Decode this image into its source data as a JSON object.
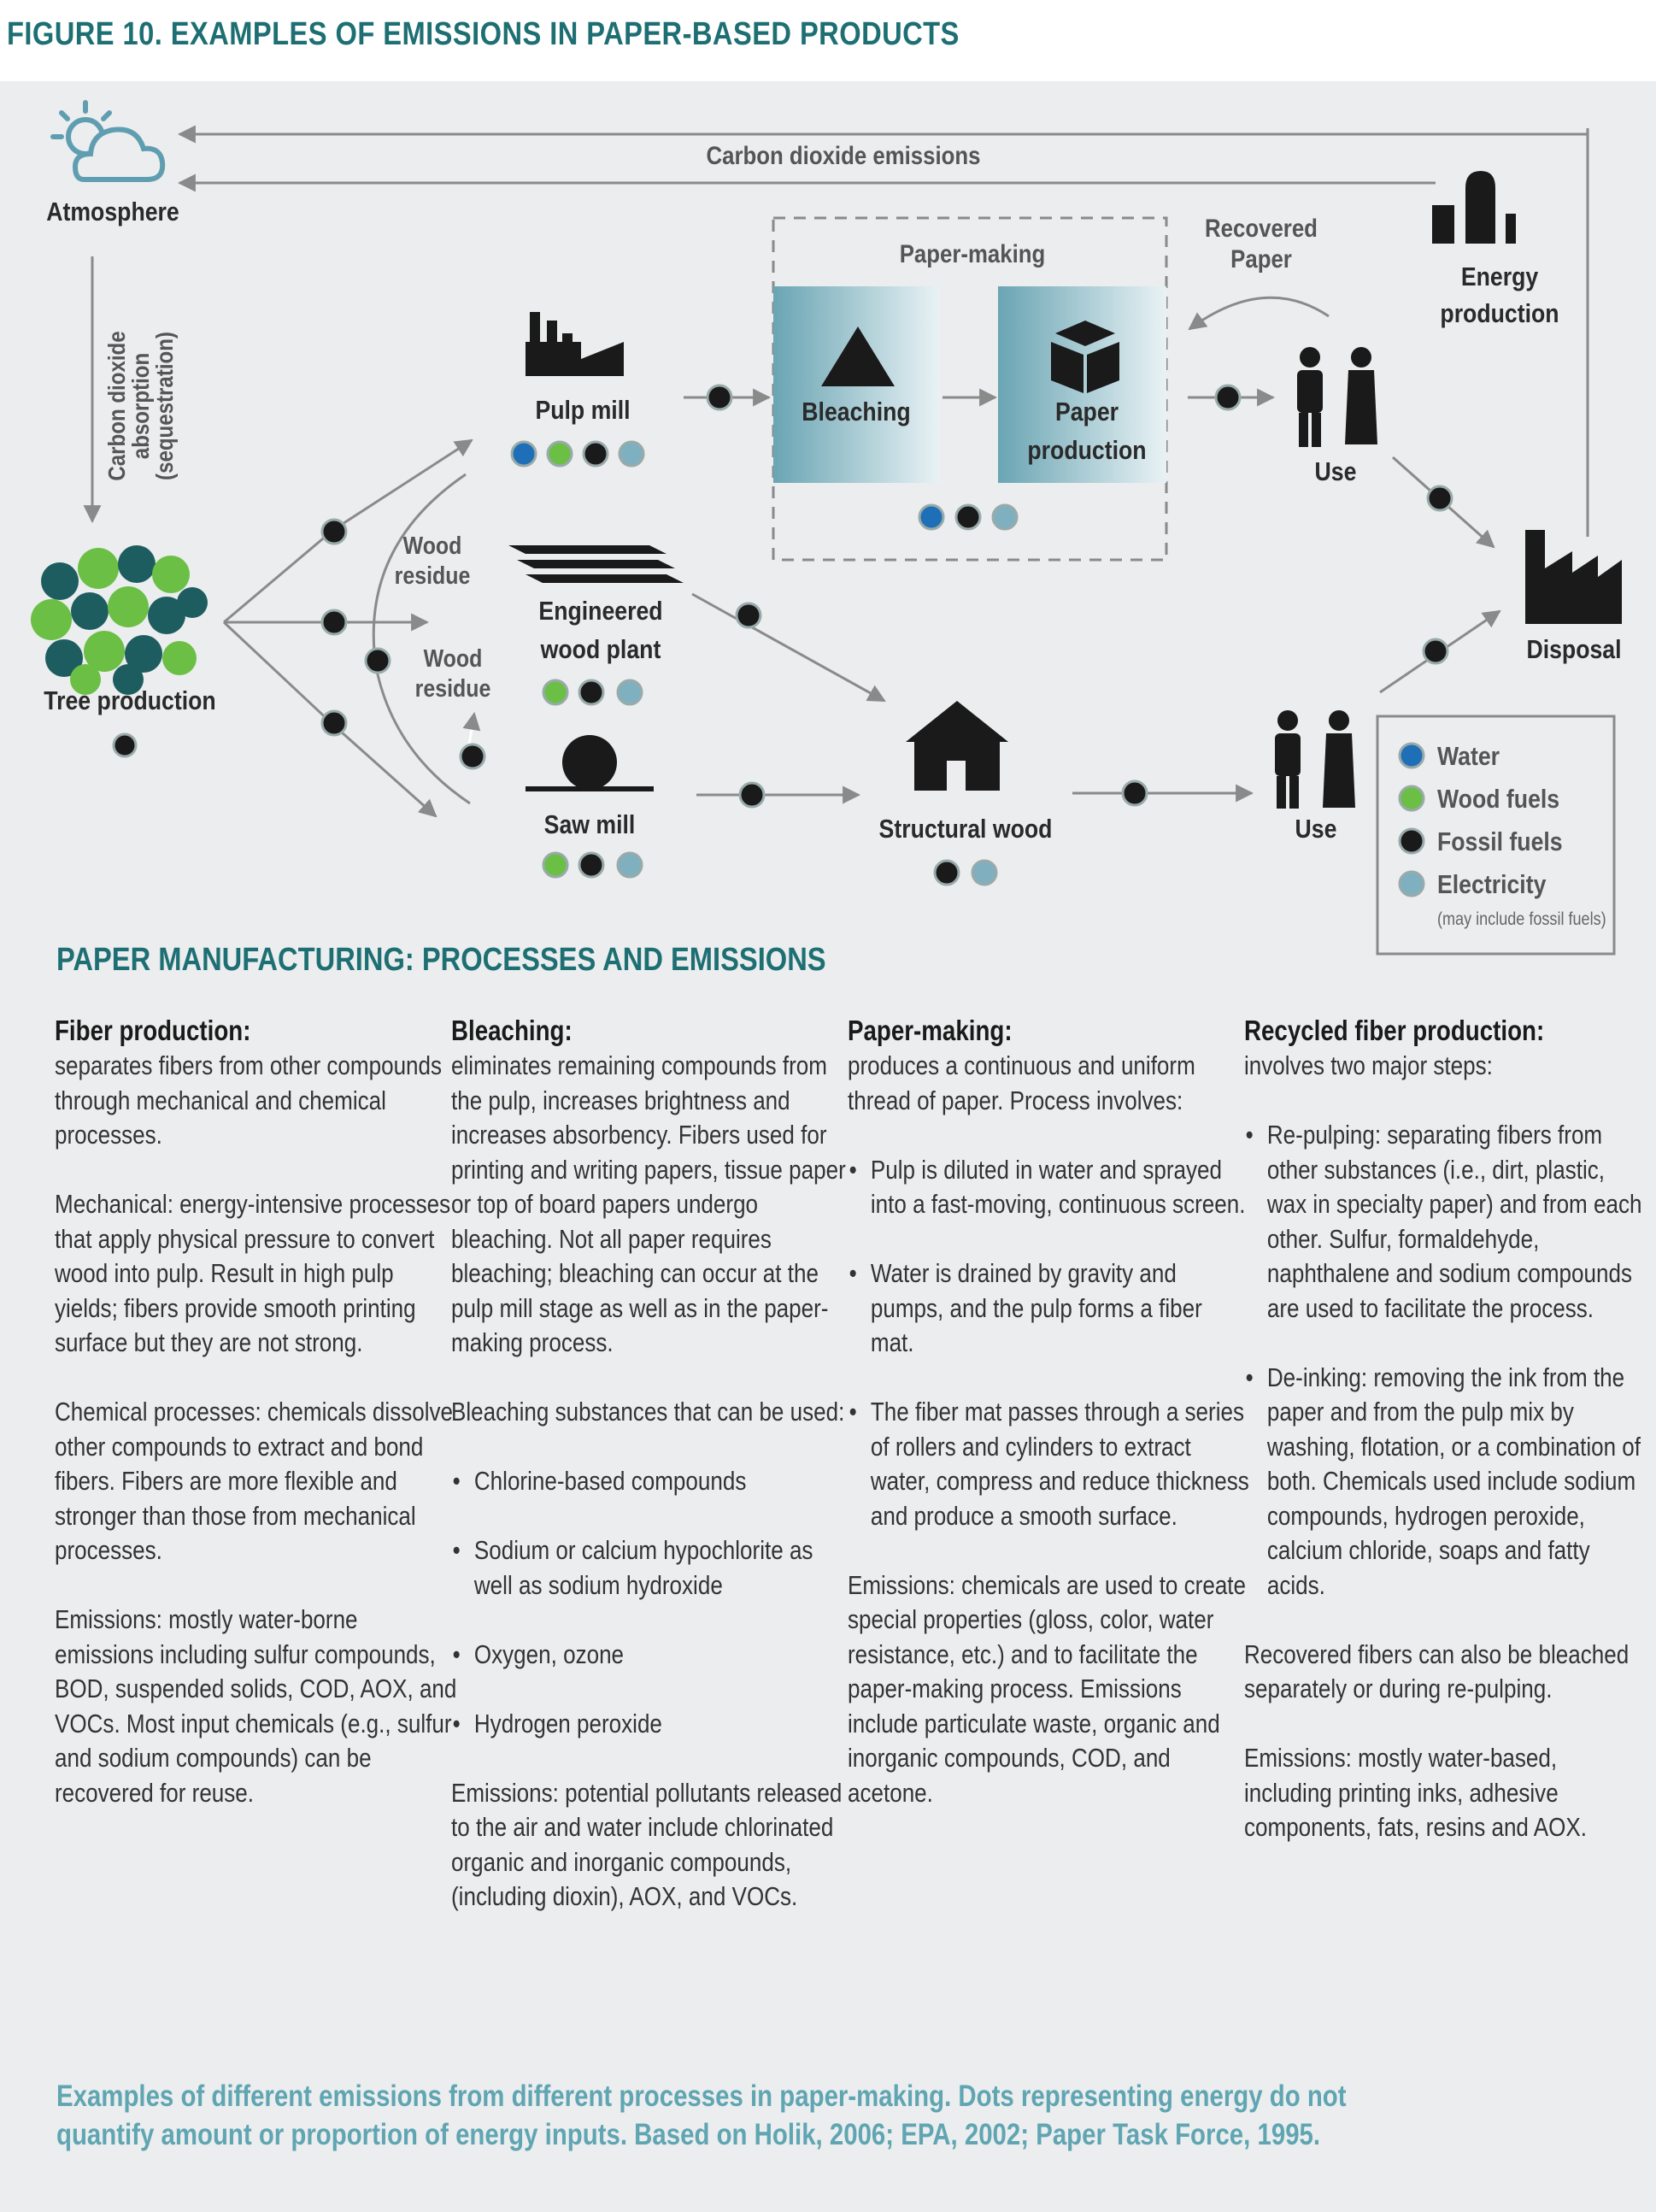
{
  "title": "FIGURE 10. EXAMPLES OF EMISSIONS IN PAPER-BASED PRODUCTS",
  "diagram": {
    "atmosphere": "Atmosphere",
    "co2_emissions": "Carbon dioxide emissions",
    "absorption_line1": "Carbon dioxide",
    "absorption_line2": "absorption",
    "absorption_line3": "(sequestration)",
    "tree_production": "Tree production",
    "wood_residue_1a": "Wood",
    "wood_residue_1b": "residue",
    "wood_residue_2a": "Wood",
    "wood_residue_2b": "residue",
    "pulp_mill": "Pulp mill",
    "engineered_1": "Engineered",
    "engineered_2": "wood plant",
    "saw_mill": "Saw mill",
    "paper_making": "Paper-making",
    "bleaching": "Bleaching",
    "paper_prod_1": "Paper",
    "paper_prod_2": "production",
    "recovered_1": "Recovered",
    "recovered_2": "Paper",
    "energy_1": "Energy",
    "energy_2": "production",
    "use_upper": "Use",
    "use_lower": "Use",
    "disposal": "Disposal",
    "structural_wood": "Structural wood"
  },
  "legend": {
    "items": [
      {
        "label": "Water",
        "color": "#1f6fb8"
      },
      {
        "label": "Wood fuels",
        "color": "#6bbf45"
      },
      {
        "label": "Fossil fuels",
        "color": "#1a1a1a"
      },
      {
        "label": "Electricity",
        "color": "#7fb0bf"
      }
    ],
    "note": "(may include fossil fuels)"
  },
  "section_title": "PAPER MANUFACTURING: PROCESSES AND EMISSIONS",
  "columns": {
    "fiber": {
      "heading": "Fiber production:",
      "p1": "separates fibers from other compounds through mechanical and chemical processes.",
      "p2": "Mechanical: energy-intensive processes that apply physical pressure to convert wood into pulp. Result in high pulp yields; fibers provide smooth printing surface but they are not strong.",
      "p3": "Chemical processes: chemicals dissolve other compounds to extract and bond fibers. Fibers are more flexible and stronger than those from mechanical processes.",
      "p4": "Emissions: mostly water-borne emissions including sulfur compounds, BOD, suspended solids, COD, AOX, and VOCs. Most input chemicals (e.g., sulfur and sodium compounds) can be recovered for reuse."
    },
    "bleaching": {
      "heading": "Bleaching:",
      "p1": "eliminates remaining compounds from the pulp, increases brightness and increases absorbency. Fibers used for printing and writing papers, tissue paper or top of board papers undergo bleaching. Not all paper requires bleaching; bleaching can occur at the pulp mill stage as well as in the paper-making process.",
      "p2": "Bleaching substances that can be used:",
      "b1": "Chlorine-based compounds",
      "b2": "Sodium or calcium hypochlorite as well as sodium hydroxide",
      "b3": "Oxygen, ozone",
      "b4": "Hydrogen peroxide",
      "p3": "Emissions: potential pollutants released to the air and water include chlorinated organic and inorganic compounds, (including dioxin), AOX, and VOCs."
    },
    "papermaking": {
      "heading": "Paper-making:",
      "p1": "produces a continuous and uniform thread of paper. Process involves:",
      "b1": "Pulp is diluted in water and sprayed into a fast-moving, continuous screen.",
      "b2": "Water is drained by gravity and pumps, and the pulp forms a fiber mat.",
      "b3": "The fiber mat passes through a series of rollers and cylinders to extract water, compress and reduce thickness and produce a smooth surface.",
      "p2": "Emissions: chemicals are used to create special properties (gloss, color, water resistance, etc.) and to facilitate the paper-making process. Emissions include particulate waste, organic and inorganic compounds, COD, and acetone."
    },
    "recycled": {
      "heading": "Recycled fiber production:",
      "p1": "involves two major steps:",
      "b1": "Re-pulping: separating fibers from other substances (i.e., dirt, plastic, wax in specialty paper) and from each other. Sulfur, formaldehyde, naphthalene and sodium compounds are used to facilitate the process.",
      "b2": "De-inking: removing the ink from the paper and from the pulp mix by washing, flotation, or a combination of both. Chemicals used include sodium compounds, hydrogen peroxide, calcium chloride, soaps and fatty acids.",
      "p2": "Recovered fibers can also be bleached separately or during re-pulping.",
      "p3": "Emissions: mostly water-based, including printing inks, adhesive components, fats, resins and AOX."
    }
  },
  "caption": {
    "line1": "Examples of different emissions from different processes in paper-making. Dots representing energy do not",
    "line2": "quantify amount or proportion of energy inputs. Based on Holik, 2006; EPA, 2002; Paper Task Force, 1995."
  }
}
